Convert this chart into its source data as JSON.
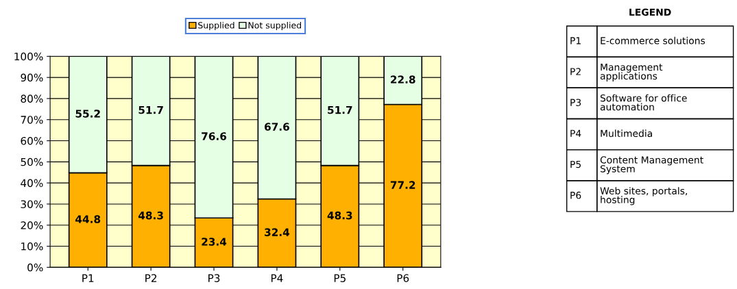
{
  "chart_data": {
    "type": "bar",
    "stacked": true,
    "categories": [
      "P1",
      "P2",
      "P3",
      "P4",
      "P5",
      "P6"
    ],
    "series": [
      {
        "name": "Supplied",
        "color": "#ffb000",
        "values": [
          44.8,
          48.3,
          23.4,
          32.4,
          48.3,
          77.2
        ]
      },
      {
        "name": "Not supplied",
        "color": "#e4ffe4",
        "values": [
          55.2,
          51.7,
          76.6,
          67.6,
          51.7,
          22.8
        ]
      }
    ],
    "ylim": [
      0,
      100
    ],
    "yticks": [
      {
        "value": 0,
        "label": "0%"
      },
      {
        "value": 10,
        "label": "10%"
      },
      {
        "value": 20,
        "label": "20%"
      },
      {
        "value": 30,
        "label": "30%"
      },
      {
        "value": 40,
        "label": "40%"
      },
      {
        "value": 50,
        "label": "50%"
      },
      {
        "value": 60,
        "label": "60%"
      },
      {
        "value": 70,
        "label": "70%"
      },
      {
        "value": 80,
        "label": "80%"
      },
      {
        "value": 90,
        "label": "90%"
      },
      {
        "value": 100,
        "label": "100%"
      }
    ],
    "grid": "y",
    "legend": "top",
    "data_labels": true,
    "annotations": [
      "LEGEND",
      "P1",
      "E-commerce solutions",
      "P2",
      "Management\napplications",
      "P3",
      "Software for office\nautomation",
      "P4",
      "Multimedia",
      "P5",
      "Content Management\nSystem",
      "P6",
      "Web sites, portals,\nhosting"
    ]
  }
}
